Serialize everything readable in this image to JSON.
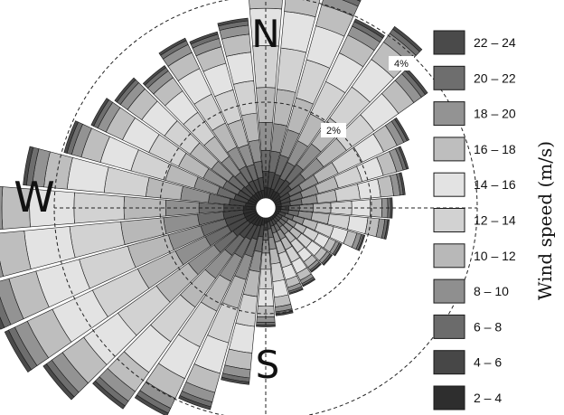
{
  "chart_data": {
    "type": "wind-rose",
    "directions": {
      "north": "N",
      "south": "S",
      "west": "W"
    },
    "ring_labels": [
      "2%",
      "4%"
    ],
    "ring_values": [
      2,
      4
    ],
    "legend_title": "Wind speed (m/s)",
    "speed_bins": [
      "2 – 4",
      "4 – 6",
      "6 – 8",
      "8 – 10",
      "10 – 12",
      "12 – 14",
      "14 – 16",
      "16 – 18",
      "18 – 20",
      "20 – 22",
      "22 – 24"
    ],
    "bin_colors": [
      "#2e2e2e",
      "#474747",
      "#6b6b6b",
      "#8f8f8f",
      "#b8b8b8",
      "#d2d2d2",
      "#e3e3e3",
      "#bebebe",
      "#939393",
      "#6e6e6e",
      "#4a4a4a"
    ],
    "sector_count": 36,
    "sector_totals_percent": [
      4.4,
      4.35,
      4.15,
      3.75,
      4.0,
      3.55,
      2.8,
      2.6,
      2.45,
      2.2,
      2.15,
      1.75,
      1.4,
      1.35,
      1.3,
      1.45,
      1.5,
      1.85,
      2.05,
      3.15,
      3.75,
      4.15,
      4.45,
      4.95,
      5.25,
      5.3,
      5.4,
      5.25,
      4.4,
      3.75,
      3.45,
      3.3,
      3.1,
      3.35,
      3.25,
      3.4
    ],
    "bin_shares": [
      0.045,
      0.07,
      0.09,
      0.12,
      0.15,
      0.18,
      0.16,
      0.1,
      0.05,
      0.025,
      0.015
    ]
  }
}
